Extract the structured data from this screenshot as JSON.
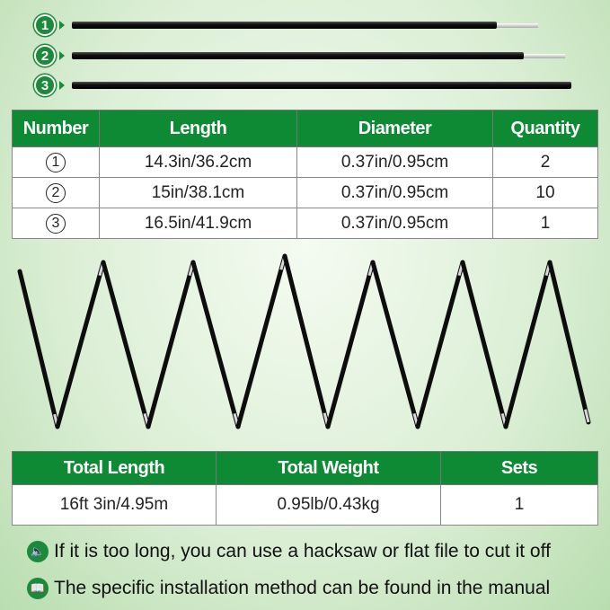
{
  "poles": [
    {
      "number": "1"
    },
    {
      "number": "2"
    },
    {
      "number": "3"
    }
  ],
  "spec_table": {
    "headers": [
      "Number",
      "Length",
      "Diameter",
      "Quantity"
    ],
    "rows": [
      {
        "number": "1",
        "length": "14.3in/36.2cm",
        "diameter": "0.37in/0.95cm",
        "quantity": "2"
      },
      {
        "number": "2",
        "length": "15in/38.1cm",
        "diameter": "0.37in/0.95cm",
        "quantity": "10"
      },
      {
        "number": "3",
        "length": "16.5in/41.9cm",
        "diameter": "0.37in/0.95cm",
        "quantity": "1"
      }
    ]
  },
  "total_table": {
    "headers": [
      "Total Length",
      "Total Weight",
      "Sets"
    ],
    "row": {
      "total_length": "16ft 3in/4.95m",
      "total_weight": "0.95lb/0.43kg",
      "sets": "1"
    }
  },
  "notes": [
    {
      "icon": "speaker-icon",
      "text": "If it is too long, you can use a hacksaw or flat file to cut it off"
    },
    {
      "icon": "book-icon",
      "text": "The specific installation method can be found in the manual"
    }
  ],
  "colors": {
    "accent": "#0f8a34"
  }
}
